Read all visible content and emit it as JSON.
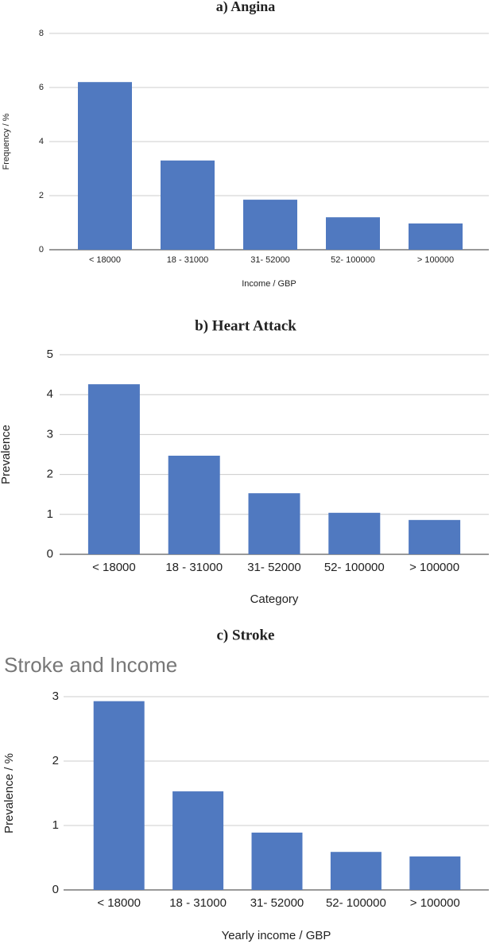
{
  "chart_data": [
    {
      "type": "bar",
      "heading": "a) Angina",
      "x_label": "Income / GBP",
      "y_label": "Frequency / %",
      "categories": [
        "< 18000",
        "18 - 31000",
        "31- 52000",
        "52- 100000",
        "> 100000"
      ],
      "values": [
        6.2,
        3.3,
        1.85,
        1.2,
        0.97
      ],
      "color": "#5079c0",
      "ylim": [
        0,
        8
      ],
      "yticks": [
        0,
        2,
        4,
        6,
        8
      ],
      "grid": true
    },
    {
      "type": "bar",
      "heading": "b) Heart Attack",
      "x_label": "Category",
      "y_label": "Prevalence",
      "categories": [
        "< 18000",
        "18 - 31000",
        "31- 52000",
        "52- 100000",
        "> 100000"
      ],
      "values": [
        4.26,
        2.47,
        1.53,
        1.04,
        0.86
      ],
      "color": "#5079c0",
      "ylim": [
        0,
        5
      ],
      "yticks": [
        0,
        1,
        2,
        3,
        4,
        5
      ],
      "grid": true
    },
    {
      "type": "bar",
      "heading": "c) Stroke",
      "title": "Stroke and Income",
      "x_label": "Yearly income / GBP",
      "y_label": "Prevalence / %",
      "categories": [
        "< 18000",
        "18 - 31000",
        "31- 52000",
        "52- 100000",
        "> 100000"
      ],
      "values": [
        2.93,
        1.53,
        0.89,
        0.59,
        0.52
      ],
      "color": "#5079c0",
      "ylim": [
        0,
        3
      ],
      "yticks": [
        0,
        1,
        2,
        3
      ],
      "grid": true
    }
  ]
}
